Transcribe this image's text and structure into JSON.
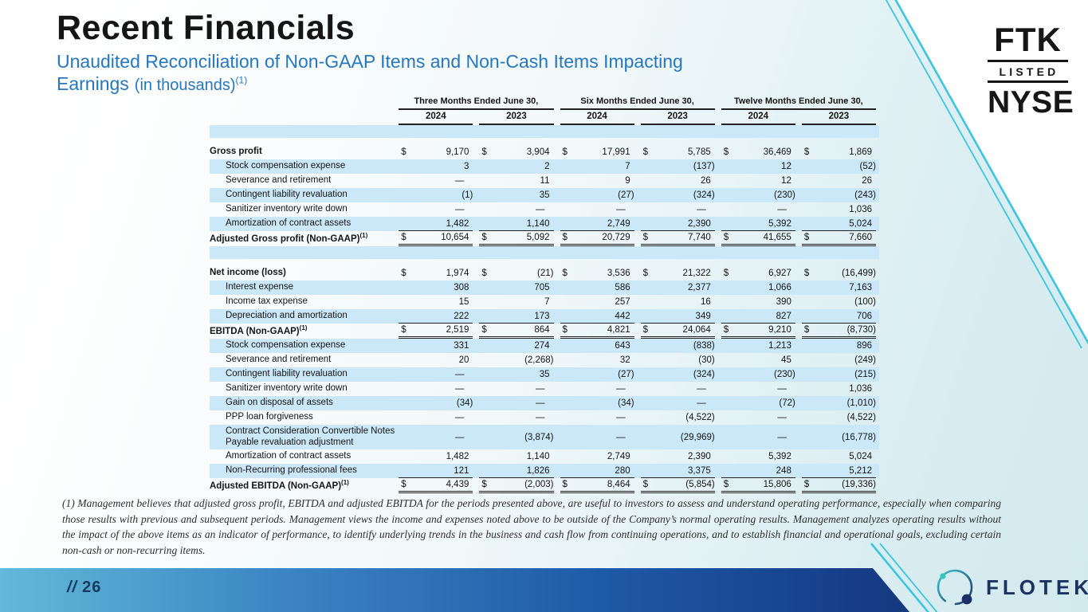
{
  "slide": {
    "title": "Recent Financials",
    "subtitle_line1": "Unaudited Reconciliation of Non-GAAP Items and Non-Cash Items Impacting",
    "subtitle_line2": "Earnings",
    "subtitle_parenthetical": "(in thousands)",
    "footnote_ref": "(1)"
  },
  "ticker_badge": {
    "symbol": "FTK",
    "listed": "LISTED",
    "exchange": "NYSE"
  },
  "brand": {
    "name": "FLOTEK"
  },
  "footer": {
    "page_prefix": "//",
    "page_number": "26"
  },
  "footnote": "(1) Management believes that adjusted gross profit, EBITDA and adjusted EBITDA for the periods presented above, are useful to investors to assess and understand operating performance, especially when comparing those results with previous and subsequent periods.  Management views the income and expenses noted above to be outside of the Company’s normal operating results.  Management analyzes operating results without the impact of the above items as an indicator of performance, to identify underlying trends in the business and cash flow from continuing operations, and to establish financial and operational goals, excluding certain non-cash or non-recurring items.",
  "table": {
    "col_groups": [
      {
        "label": "Three Months Ended June 30,",
        "years": [
          "2024",
          "2023"
        ]
      },
      {
        "label": "Six Months Ended June 30,",
        "years": [
          "2024",
          "2023"
        ]
      },
      {
        "label": "Twelve Months Ended June 30,",
        "years": [
          "2024",
          "2023"
        ]
      }
    ],
    "rows": [
      {
        "type": "spacer",
        "shade": true,
        "h": 16
      },
      {
        "type": "spacer",
        "shade": false,
        "h": 9
      },
      {
        "label": "Gross profit",
        "bold": true,
        "dollar": true,
        "shade": false,
        "values": [
          "9,170",
          "3,904",
          "17,991",
          "5,785",
          "36,469",
          "1,869"
        ]
      },
      {
        "label": "Stock compensation expense",
        "indent": true,
        "shade": true,
        "values": [
          "3",
          "2",
          "7",
          "(137)",
          "12",
          "(52)"
        ]
      },
      {
        "label": "Severance and retirement",
        "indent": true,
        "shade": false,
        "values": [
          "—",
          "11",
          "9",
          "26",
          "12",
          "26"
        ]
      },
      {
        "label": "Contingent liability revaluation",
        "indent": true,
        "shade": true,
        "values": [
          "(1)",
          "35",
          "(27)",
          "(324)",
          "(230)",
          "(243)"
        ]
      },
      {
        "label": "Sanitizer inventory write down",
        "indent": true,
        "shade": false,
        "values": [
          "—",
          "—",
          "—",
          "—",
          "—",
          "1,036"
        ]
      },
      {
        "label": "Amortization of contract assets",
        "indent": true,
        "shade": true,
        "underline": "single",
        "values": [
          "1,482",
          "1,140",
          "2,749",
          "2,390",
          "5,392",
          "5,024"
        ]
      },
      {
        "label": "Adjusted Gross profit (Non-GAAP)",
        "sup": "(1)",
        "bold": true,
        "dollar": true,
        "shade": false,
        "underline": "double",
        "values": [
          "10,654",
          "5,092",
          "20,729",
          "7,740",
          "41,655",
          "7,660"
        ]
      },
      {
        "type": "spacer",
        "shade": true,
        "h": 16
      },
      {
        "type": "spacer",
        "shade": false,
        "h": 9
      },
      {
        "label": "Net income (loss)",
        "bold": true,
        "dollar": true,
        "shade": false,
        "values": [
          "1,974",
          "(21)",
          "3,536",
          "21,322",
          "6,927",
          "(16,499)"
        ]
      },
      {
        "label": "Interest expense",
        "indent": true,
        "shade": true,
        "values": [
          "308",
          "705",
          "586",
          "2,377",
          "1,066",
          "7,163"
        ]
      },
      {
        "label": "Income tax expense",
        "indent": true,
        "shade": false,
        "values": [
          "15",
          "7",
          "257",
          "16",
          "390",
          "(100)"
        ]
      },
      {
        "label": "Depreciation and amortization",
        "indent": true,
        "shade": true,
        "underline": "single",
        "values": [
          "222",
          "173",
          "442",
          "349",
          "827",
          "706"
        ]
      },
      {
        "label": "EBITDA (Non-GAAP)",
        "sup": "(1)",
        "bold": true,
        "dollar": true,
        "shade": false,
        "underline": "double",
        "values": [
          "2,519",
          "864",
          "4,821",
          "24,064",
          "9,210",
          "(8,730)"
        ]
      },
      {
        "label": "Stock compensation expense",
        "indent": true,
        "shade": true,
        "values": [
          "331",
          "274",
          "643",
          "(838)",
          "1,213",
          "896"
        ]
      },
      {
        "label": "Severance and retirement",
        "indent": true,
        "shade": false,
        "values": [
          "20",
          "(2,268)",
          "32",
          "(30)",
          "45",
          "(249)"
        ]
      },
      {
        "label": "Contingent liability revaluation",
        "indent": true,
        "shade": true,
        "values": [
          "—",
          "35",
          "(27)",
          "(324)",
          "(230)",
          "(215)"
        ]
      },
      {
        "label": "Sanitizer inventory write down",
        "indent": true,
        "shade": false,
        "values": [
          "—",
          "—",
          "—",
          "—",
          "—",
          "1,036"
        ]
      },
      {
        "label": "Gain on disposal of assets",
        "indent": true,
        "shade": true,
        "values": [
          "(34)",
          "—",
          "(34)",
          "—",
          "(72)",
          "(1,010)"
        ]
      },
      {
        "label": "PPP loan forgiveness",
        "indent": true,
        "shade": false,
        "values": [
          "—",
          "—",
          "—",
          "(4,522)",
          "—",
          "(4,522)"
        ]
      },
      {
        "label": "Contract Consideration Convertible Notes Payable revaluation adjustment",
        "indent": true,
        "shade": true,
        "twoline": true,
        "values": [
          "—",
          "(3,874)",
          "—",
          "(29,969)",
          "—",
          "(16,778)"
        ]
      },
      {
        "label": "Amortization of contract assets",
        "indent": true,
        "shade": false,
        "values": [
          "1,482",
          "1,140",
          "2,749",
          "2,390",
          "5,392",
          "5,024"
        ]
      },
      {
        "label": "Non-Recurring professional fees",
        "indent": true,
        "shade": true,
        "underline": "single",
        "values": [
          "121",
          "1,826",
          "280",
          "3,375",
          "248",
          "5,212"
        ]
      },
      {
        "label": "Adjusted EBITDA (Non-GAAP)",
        "sup": "(1)",
        "bold": true,
        "dollar": true,
        "shade": false,
        "underline": "double",
        "values": [
          "4,439",
          "(2,003)",
          "8,464",
          "(5,854)",
          "15,806",
          "(19,336)"
        ]
      }
    ]
  },
  "colors": {
    "title_text": "#151515",
    "subtitle_blue": "#2577c0",
    "table_stripe": "#cbe8f8",
    "table_text": "#141414",
    "accent_cyan": "#3cc5df",
    "footnote_text": "#2e2e2e",
    "navy": "#1c3263",
    "teal_dot": "#2fc8bd",
    "bar_start": "#62bad9",
    "bar_mid": "#1f5aa8",
    "bar_end": "#122c67",
    "page_number_text": "#123a5e"
  }
}
